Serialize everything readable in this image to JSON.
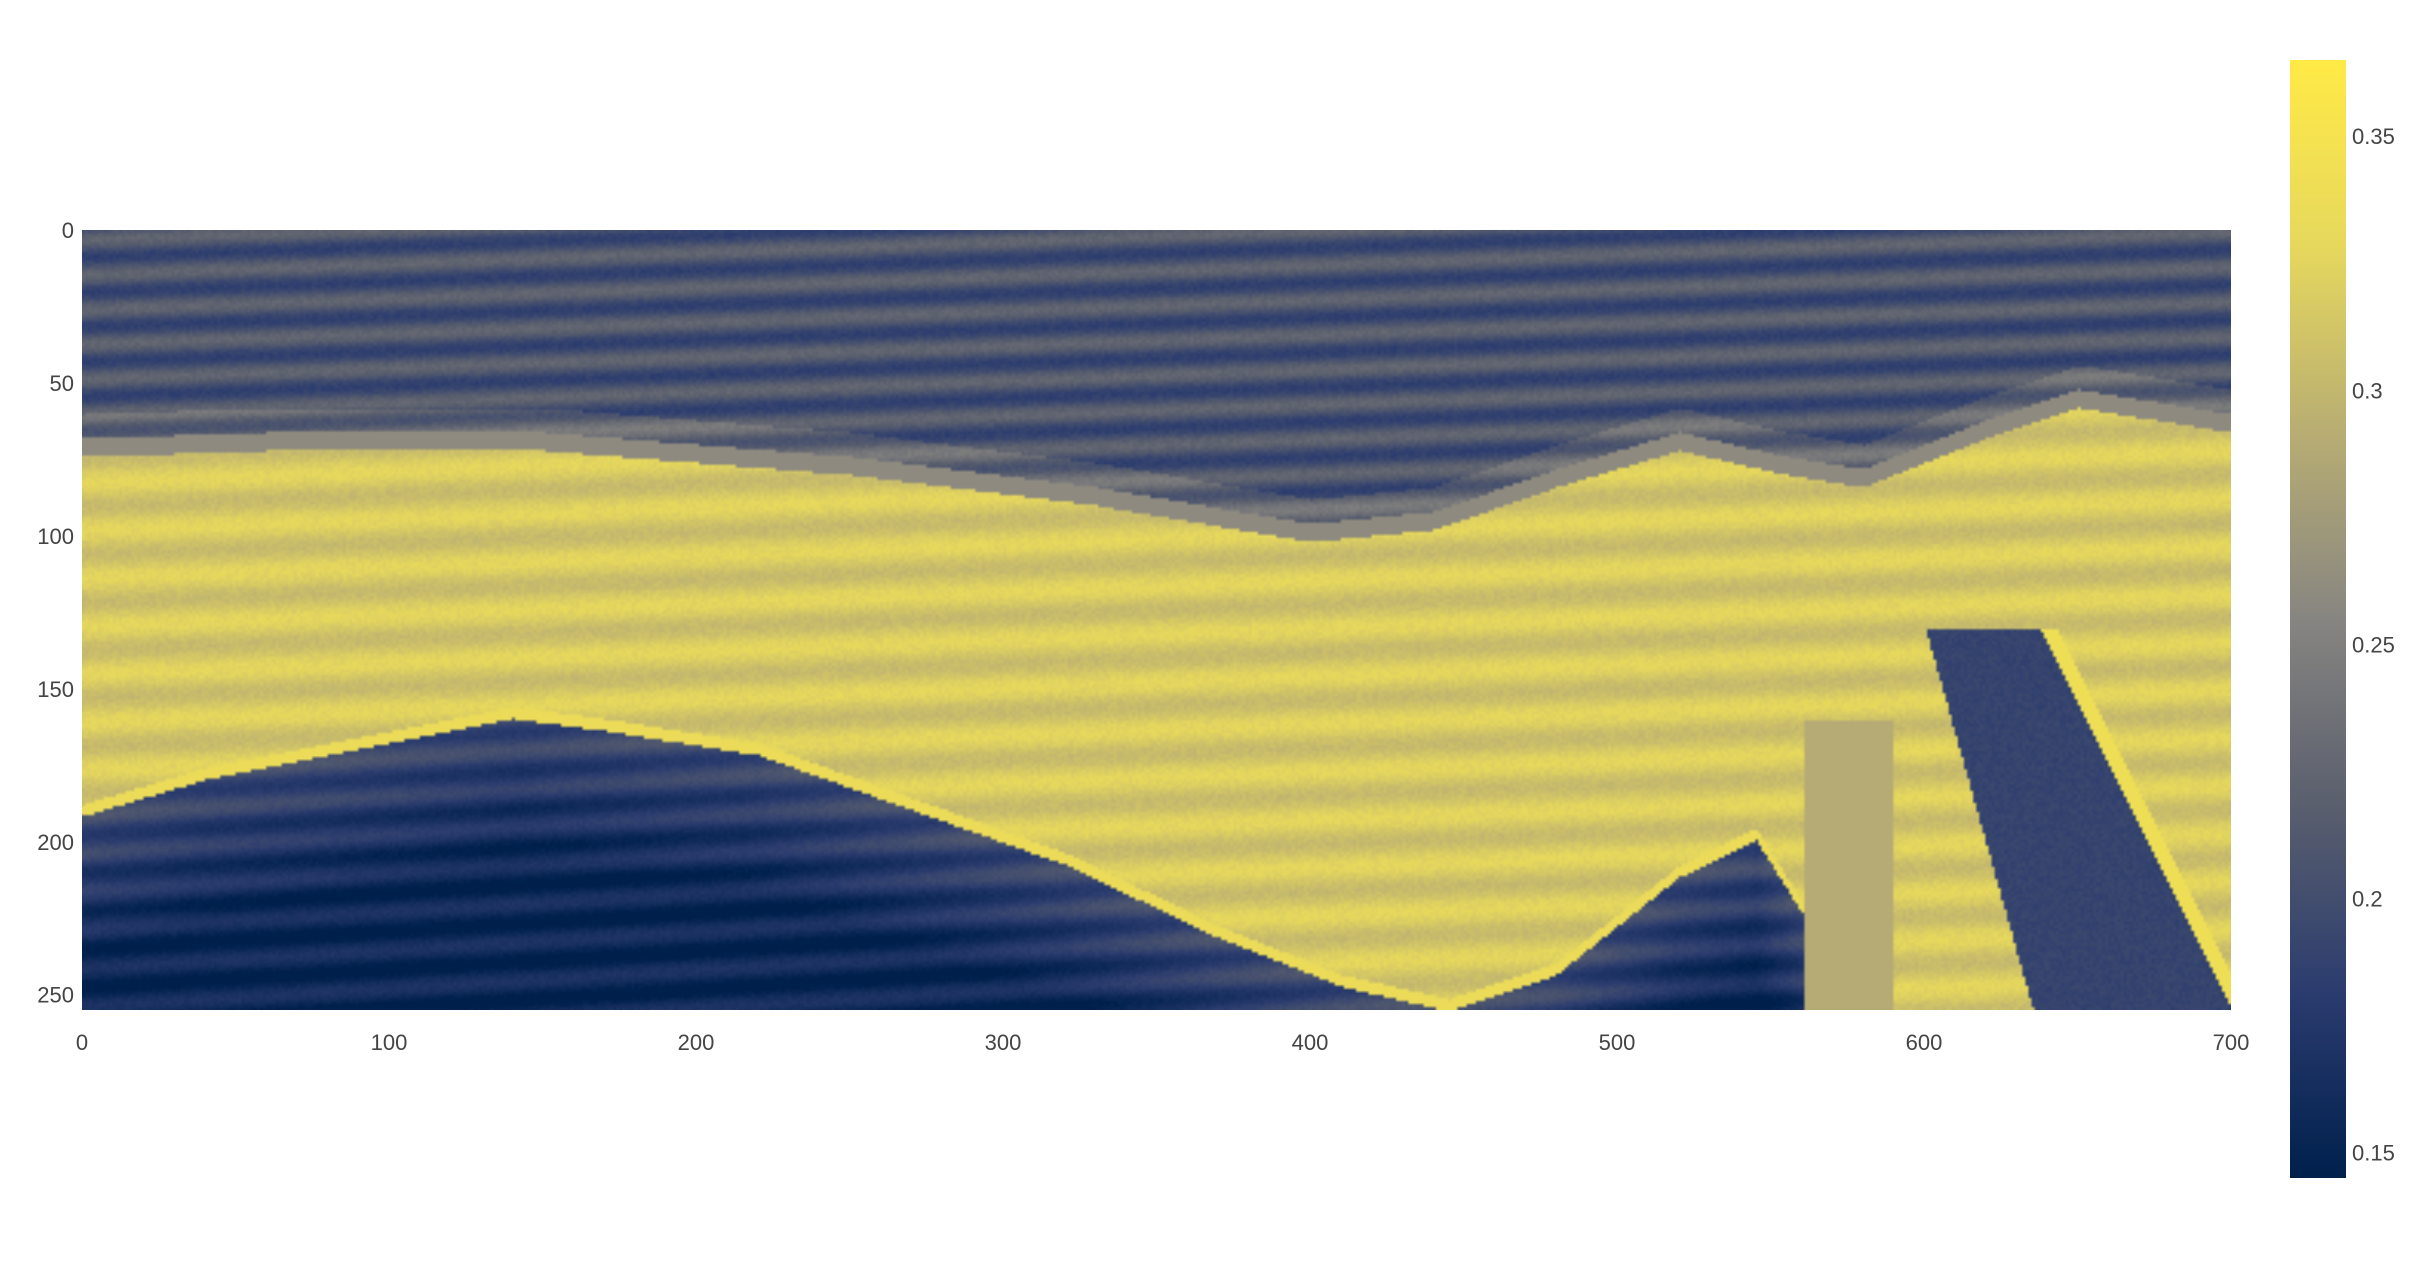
{
  "chart_data": {
    "type": "heatmap",
    "title": "",
    "xlabel": "",
    "ylabel": "",
    "xlim": [
      0,
      700
    ],
    "ylim": [
      255,
      0
    ],
    "x_ticks": [
      0,
      100,
      200,
      300,
      400,
      500,
      600,
      700
    ],
    "y_ticks": [
      0,
      50,
      100,
      150,
      200,
      250
    ],
    "x_tick_labels": [
      "0",
      "100",
      "200",
      "300",
      "400",
      "500",
      "600",
      "700"
    ],
    "y_tick_labels": [
      "0",
      "50",
      "100",
      "150",
      "200",
      "250"
    ],
    "colorbar": {
      "range": [
        0.145,
        0.365
      ],
      "ticks": [
        0.15,
        0.2,
        0.25,
        0.3,
        0.35
      ],
      "tick_labels": [
        "0.15",
        "0.2",
        "0.25",
        "0.3",
        "0.35"
      ],
      "colorscale": "cividis",
      "colors": [
        "#00204c",
        "#2b3c6e",
        "#5a5f6e",
        "#878581",
        "#b8ad73",
        "#e6d85d",
        "#ffea46"
      ]
    },
    "grid": false,
    "legend": "none",
    "description_layers": [
      {
        "name": "upper-layer",
        "value_range": [
          0.19,
          0.23
        ]
      },
      {
        "name": "middle-bright-layer",
        "value_range": [
          0.3,
          0.34
        ]
      },
      {
        "name": "lower-dark-layer",
        "value_range": [
          0.15,
          0.19
        ]
      }
    ]
  }
}
